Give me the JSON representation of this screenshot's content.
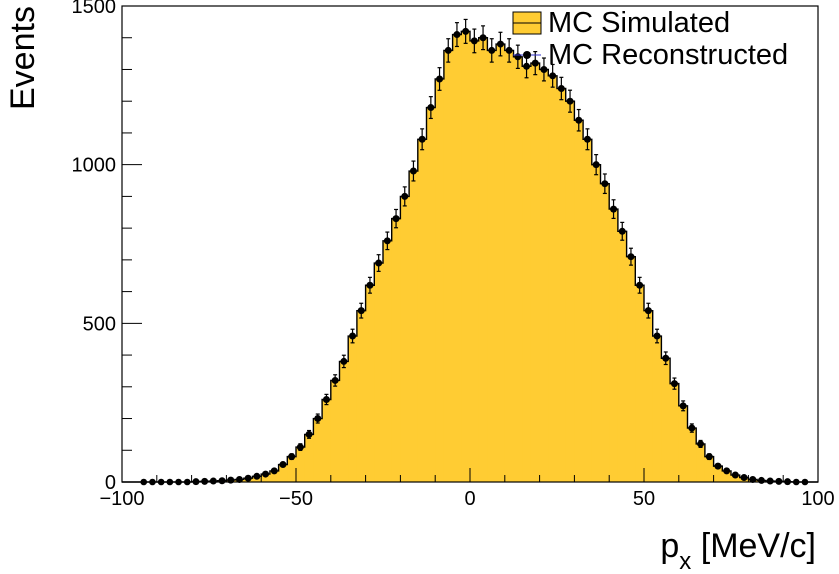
{
  "chart_data": {
    "type": "bar",
    "xlabel": "p",
    "xlabel_sub": "x",
    "xlabel_unit": " [MeV/c]",
    "ylabel": "Events",
    "xlim": [
      -100,
      100
    ],
    "ylim": [
      0,
      1500
    ],
    "x_ticks": [
      -100,
      -50,
      0,
      50,
      100
    ],
    "x_tick_labels": [
      "−100",
      "−50",
      "0",
      "50",
      "100"
    ],
    "y_ticks": [
      0,
      500,
      1000,
      1500
    ],
    "y_tick_labels": [
      "0",
      "500",
      "1000",
      "1500"
    ],
    "bin_width": 2.5,
    "bin_edges_start": -100,
    "series": [
      {
        "name": "MC Simulated",
        "style": "filled-histogram",
        "color": "#FFCC33",
        "values": [
          0,
          0,
          0,
          0,
          0,
          0,
          0,
          0,
          1,
          2,
          3,
          4,
          6,
          8,
          12,
          18,
          25,
          35,
          55,
          80,
          110,
          150,
          200,
          260,
          320,
          380,
          460,
          540,
          620,
          690,
          760,
          830,
          900,
          980,
          1080,
          1180,
          1270,
          1360,
          1410,
          1420,
          1390,
          1400,
          1360,
          1380,
          1360,
          1340,
          1310,
          1320,
          1300,
          1280,
          1240,
          1200,
          1140,
          1080,
          1000,
          940,
          860,
          790,
          710,
          620,
          540,
          460,
          390,
          310,
          240,
          170,
          120,
          80,
          50,
          35,
          22,
          14,
          8,
          5,
          3,
          2,
          1,
          0,
          0,
          0
        ]
      },
      {
        "name": "MC Reconstructed",
        "style": "points-with-errors",
        "color": "#000000",
        "values": [
          0,
          0,
          0,
          0,
          0,
          0,
          0,
          0,
          1,
          2,
          3,
          4,
          6,
          8,
          12,
          18,
          25,
          35,
          55,
          80,
          110,
          150,
          200,
          260,
          320,
          380,
          460,
          540,
          620,
          690,
          760,
          830,
          900,
          980,
          1080,
          1180,
          1270,
          1360,
          1410,
          1420,
          1390,
          1400,
          1360,
          1380,
          1360,
          1340,
          1310,
          1320,
          1300,
          1280,
          1240,
          1200,
          1140,
          1080,
          1000,
          940,
          860,
          790,
          710,
          620,
          540,
          460,
          390,
          310,
          240,
          170,
          120,
          80,
          50,
          35,
          22,
          14,
          8,
          5,
          3,
          2,
          1,
          0,
          0,
          0
        ]
      }
    ],
    "legend_position": "top-right"
  }
}
